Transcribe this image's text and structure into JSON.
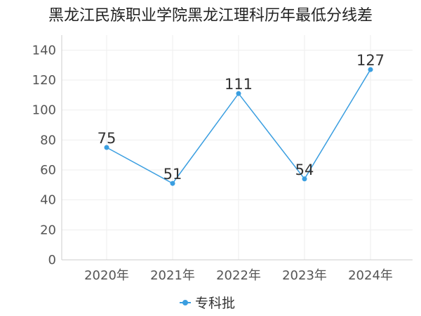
{
  "chart_data": {
    "type": "line",
    "title": "黑龙江民族职业学院黑龙江理科历年最低分线差",
    "categories": [
      "2020年",
      "2021年",
      "2022年",
      "2023年",
      "2024年"
    ],
    "series": [
      {
        "name": "专科批",
        "values": [
          75,
          51,
          111,
          54,
          127
        ]
      }
    ],
    "ylim": [
      0,
      150
    ],
    "yticks": [
      0,
      20,
      40,
      60,
      80,
      100,
      120,
      140
    ],
    "grid": true,
    "legend_position": "bottom",
    "colors": {
      "series": "#3a9ee0",
      "grid": "#eeeeee",
      "axis": "#cccccc"
    }
  }
}
